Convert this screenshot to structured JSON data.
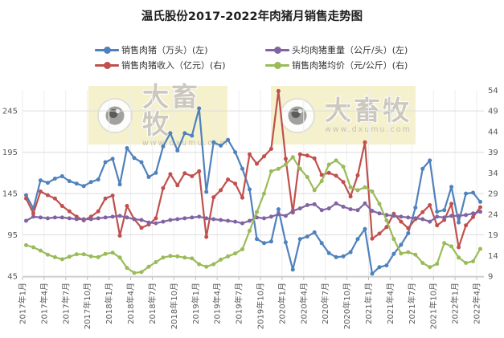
{
  "title": "温氏股份2017-2022年肉猪月销售走势图",
  "legend": [
    {
      "id": "sales-volume",
      "label": "销售肉猪（万头）(左)",
      "color": "#4f81bd"
    },
    {
      "id": "avg-weight",
      "label": "头均肉猪重量（公斤/头）(左)",
      "color": "#8064a2"
    },
    {
      "id": "sales-revenue",
      "label": "销售肉猪收入（亿元）(右)",
      "color": "#c0504d"
    },
    {
      "id": "avg-price",
      "label": "销售肉猪均价（元/公斤）(右)",
      "color": "#9bbb59"
    }
  ],
  "watermark": {
    "brand": "大畜牧",
    "url": "www.dxumu.com",
    "bg": "#f5f1cd",
    "brand_color": "#ccc8bd",
    "url_color": "#c6c2b6"
  },
  "axes": {
    "left_ticks": [
      45,
      95,
      145,
      195,
      245
    ],
    "right_ticks": [
      9,
      14,
      19,
      24,
      29,
      34,
      39,
      44,
      49,
      54
    ],
    "x_tick_labels": [
      "2017年1月",
      "2017年4月",
      "2017年7月",
      "2017年10月",
      "2018年1月",
      "2018年4月",
      "2018年7月",
      "2018年10月",
      "2019年1月",
      "2019年4月",
      "2019年7月",
      "2019年10月",
      "2020年1月",
      "2020年4月",
      "2020年7月",
      "2020年10月",
      "2021年1月",
      "2021年4月",
      "2021年7月",
      "2021年10月",
      "2022年1月",
      "2022年4月"
    ],
    "label_color": "#595959",
    "gridline_color": "#dcdcdc",
    "vgridline_color": "#ededed",
    "axisline_color": "#bfbfbf"
  },
  "chart_data": {
    "type": "line",
    "title": "温氏股份2017-2022年肉猪月销售走势图",
    "left_axis_range": [
      45,
      270
    ],
    "right_axis_range": [
      9,
      54
    ],
    "grid": true,
    "legend_position": "top",
    "months": [
      "2017-01",
      "2017-02",
      "2017-03",
      "2017-04",
      "2017-05",
      "2017-06",
      "2017-07",
      "2017-08",
      "2017-09",
      "2017-10",
      "2017-11",
      "2017-12",
      "2018-01",
      "2018-02",
      "2018-03",
      "2018-04",
      "2018-05",
      "2018-06",
      "2018-07",
      "2018-08",
      "2018-09",
      "2018-10",
      "2018-11",
      "2018-12",
      "2019-01",
      "2019-02",
      "2019-03",
      "2019-04",
      "2019-05",
      "2019-06",
      "2019-07",
      "2019-08",
      "2019-09",
      "2019-10",
      "2019-11",
      "2019-12",
      "2020-01",
      "2020-02",
      "2020-03",
      "2020-04",
      "2020-05",
      "2020-06",
      "2020-07",
      "2020-08",
      "2020-09",
      "2020-10",
      "2020-11",
      "2020-12",
      "2021-01",
      "2021-02",
      "2021-03",
      "2021-04",
      "2021-05",
      "2021-06",
      "2021-07",
      "2021-08",
      "2021-09",
      "2021-10",
      "2021-11",
      "2021-12",
      "2022-01",
      "2022-02",
      "2022-03",
      "2022-04"
    ],
    "series": [
      {
        "name": "销售肉猪（万头）(左)",
        "axis": "left",
        "color": "#4f81bd",
        "values": [
          143,
          127,
          161,
          158,
          163,
          166,
          160,
          157,
          154,
          159,
          162,
          183,
          187,
          156,
          200,
          188,
          183,
          165,
          170,
          202,
          218,
          197,
          218,
          215,
          248,
          147,
          207,
          203,
          210,
          195,
          175,
          150,
          90,
          85,
          87,
          126,
          86,
          53,
          90,
          93,
          98,
          85,
          73,
          68,
          69,
          74,
          90,
          102,
          48,
          56,
          58,
          72,
          83,
          97,
          128,
          175,
          185,
          123,
          125,
          153,
          110,
          145,
          146,
          135
        ]
      },
      {
        "name": "销售肉猪收入（亿元）(右)",
        "axis": "right",
        "color": "#c0504d",
        "values": [
          27.8,
          24.2,
          29.5,
          28.6,
          27.8,
          26.0,
          24.7,
          23.4,
          22.5,
          23.4,
          24.7,
          27.8,
          28.5,
          18.8,
          26.0,
          22.8,
          20.7,
          21.5,
          23.0,
          30.3,
          33.7,
          31.0,
          33.9,
          33.2,
          34.4,
          18.5,
          28.1,
          29.8,
          32.4,
          31.4,
          28.0,
          38.5,
          36.2,
          38.0,
          39.8,
          53.8,
          37.4,
          24.4,
          38.5,
          38.2,
          37.5,
          33.5,
          34.0,
          33.3,
          31.8,
          28.3,
          33.4,
          41.4,
          18.1,
          19.3,
          20.9,
          24.1,
          22.2,
          20.6,
          22.8,
          24.5,
          26.2,
          21.3,
          22.6,
          26.5,
          16.0,
          21.3,
          23.3,
          25.7
        ]
      },
      {
        "name": "头均肉猪重量（公斤/头）(左)",
        "axis": "left",
        "color": "#8064a2",
        "values": [
          112,
          117,
          116,
          115,
          116,
          116,
          115,
          114,
          114,
          114,
          115,
          116,
          117,
          118,
          116,
          114,
          113,
          110,
          109,
          111,
          113,
          114,
          115,
          116,
          117,
          115,
          114,
          113,
          112,
          111,
          109,
          112,
          116,
          115,
          117,
          120,
          118,
          124,
          127,
          131,
          132,
          125,
          127,
          133,
          129,
          126,
          125,
          133,
          124,
          121,
          119,
          118,
          117,
          116,
          115,
          114,
          111,
          117,
          116,
          118,
          118,
          119,
          121,
          123
        ]
      },
      {
        "name": "销售肉猪均价（元/公斤）(右)",
        "axis": "right",
        "color": "#9bbb59",
        "values": [
          16.5,
          16.0,
          15.2,
          14.2,
          13.6,
          13.1,
          13.7,
          14.3,
          14.3,
          13.8,
          13.6,
          14.4,
          14.7,
          13.5,
          11.0,
          9.8,
          10.0,
          11.3,
          12.4,
          13.5,
          13.9,
          13.8,
          13.5,
          13.3,
          11.9,
          11.3,
          11.9,
          13.0,
          13.8,
          14.5,
          15.5,
          20.0,
          24.5,
          29.0,
          34.4,
          35.0,
          36.0,
          37.8,
          35.0,
          33.0,
          29.8,
          32.0,
          36.0,
          37.0,
          35.5,
          30.5,
          29.8,
          30.5,
          29.5,
          26.5,
          22.5,
          18.0,
          14.5,
          14.8,
          14.2,
          12.2,
          11.2,
          12.0,
          17.0,
          16.2,
          13.5,
          12.2,
          12.6,
          15.6
        ]
      }
    ]
  }
}
